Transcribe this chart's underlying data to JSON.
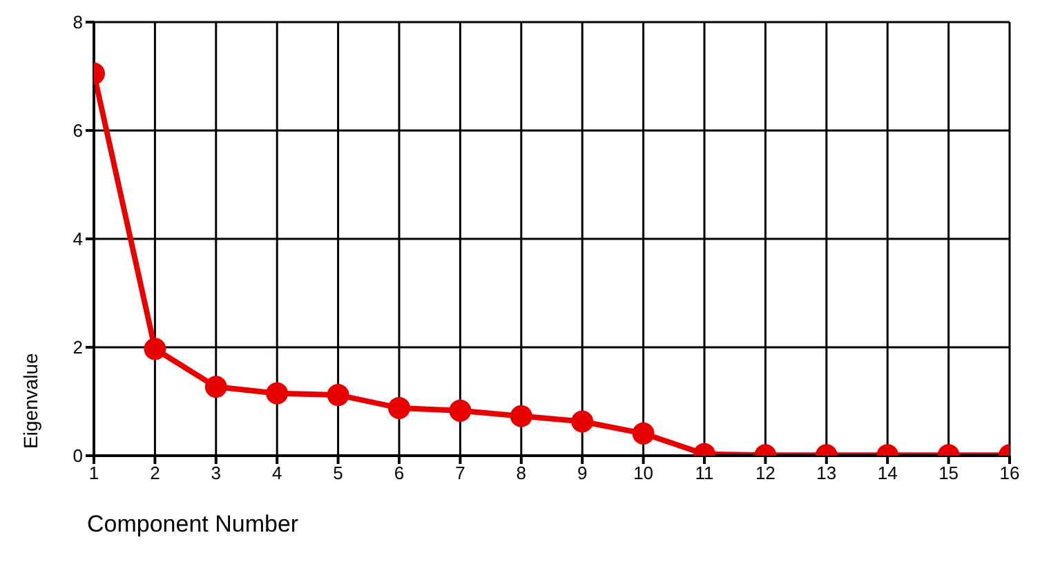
{
  "chart_data": {
    "type": "line",
    "xlabel": "Component Number",
    "ylabel": "Eigenvalue",
    "x": [
      1,
      2,
      3,
      4,
      5,
      6,
      7,
      8,
      9,
      10,
      11,
      12,
      13,
      14,
      15,
      16
    ],
    "series": [
      {
        "color": "#e60000",
        "values": [
          7.05,
          1.97,
          1.27,
          1.15,
          1.12,
          0.88,
          0.83,
          0.73,
          0.63,
          0.41,
          0.03,
          0.01,
          0.01,
          0.01,
          0.01,
          0.01
        ]
      }
    ],
    "xlim": [
      1,
      16
    ],
    "xticks": [
      1,
      2,
      3,
      4,
      5,
      6,
      7,
      8,
      9,
      10,
      11,
      12,
      13,
      14,
      15,
      16
    ],
    "ylim": [
      0,
      8
    ],
    "yticks": [
      0,
      2,
      4,
      6,
      8
    ],
    "grid": true,
    "marker": "circle",
    "line_style": "solid"
  }
}
